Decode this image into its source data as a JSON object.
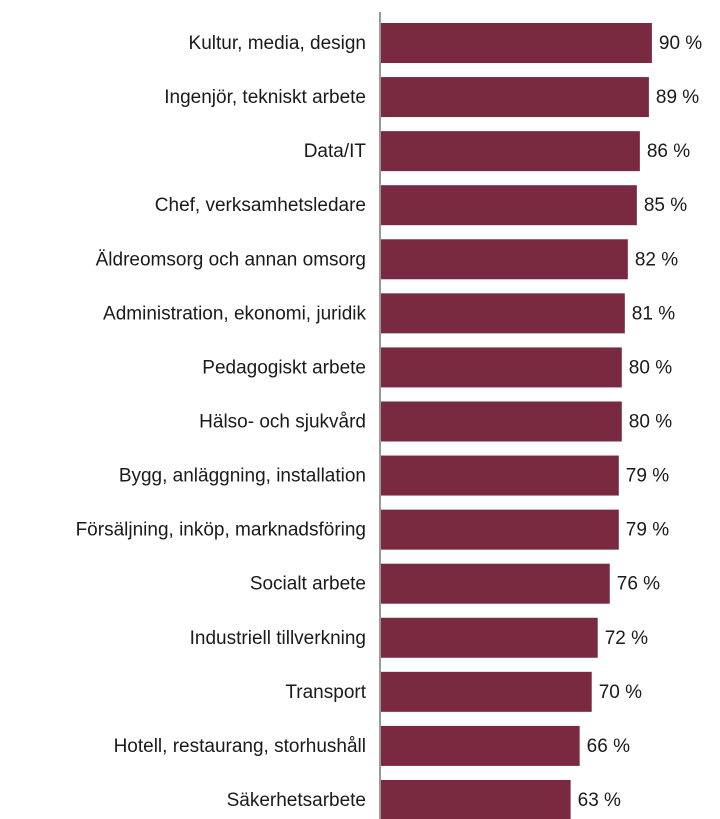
{
  "chart_data": {
    "type": "bar",
    "orientation": "horizontal",
    "categories": [
      "Kultur, media, design",
      "Ingenjör, tekniskt arbete",
      "Data/IT",
      "Chef, verksamhetsledare",
      "Äldreomsorg och annan omsorg",
      "Administration, ekonomi, juridik",
      "Pedagogiskt arbete",
      "Hälso- och sjukvård",
      "Bygg, anläggning, installation",
      "Försäljning, inköp, marknadsföring",
      "Socialt arbete",
      "Industriell tillverkning",
      "Transport",
      "Hotell, restaurang, storhushåll",
      "Säkerhetsarbete"
    ],
    "values": [
      90,
      89,
      86,
      85,
      82,
      81,
      80,
      80,
      79,
      79,
      76,
      72,
      70,
      66,
      63
    ],
    "value_labels": [
      "90 %",
      "89 %",
      "86 %",
      "85 %",
      "82 %",
      "81 %",
      "80 %",
      "80 %",
      "79 %",
      "79 %",
      "76 %",
      "72 %",
      "70 %",
      "66 %",
      "63 %"
    ],
    "color": "#7a2a40",
    "xlim": [
      0,
      100
    ]
  }
}
